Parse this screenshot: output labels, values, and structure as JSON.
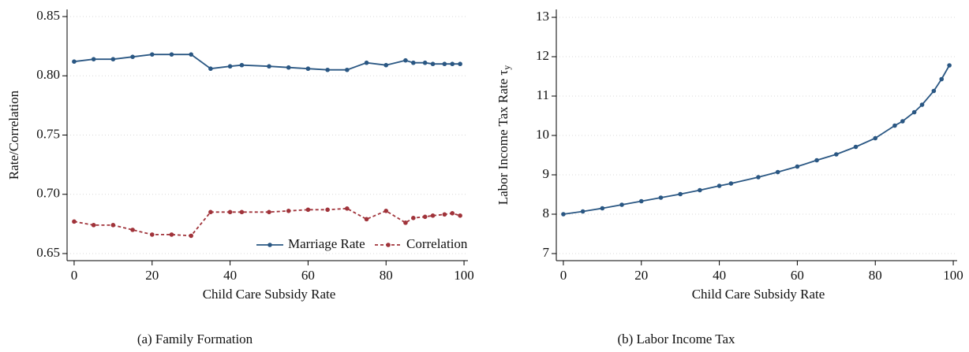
{
  "chart_data": [
    {
      "type": "line",
      "caption": "(a) Family Formation",
      "xlabel": "Child Care Subsidy Rate",
      "ylabel": "Rate/Correlation",
      "x": [
        0,
        5,
        10,
        15,
        20,
        25,
        30,
        35,
        40,
        43,
        50,
        55,
        60,
        65,
        70,
        75,
        80,
        85,
        87,
        90,
        92,
        95,
        97,
        99
      ],
      "series": [
        {
          "name": "Marriage Rate",
          "color": "#2a5783",
          "linestyle": "solid",
          "values": [
            0.812,
            0.814,
            0.814,
            0.816,
            0.818,
            0.818,
            0.818,
            0.806,
            0.808,
            0.809,
            0.808,
            0.807,
            0.806,
            0.805,
            0.805,
            0.811,
            0.809,
            0.813,
            0.811,
            0.811,
            0.81,
            0.81,
            0.81,
            0.81
          ]
        },
        {
          "name": "Correlation",
          "color": "#a0333a",
          "linestyle": "dashed",
          "values": [
            0.677,
            0.674,
            0.674,
            0.67,
            0.666,
            0.666,
            0.665,
            0.685,
            0.685,
            0.685,
            0.685,
            0.686,
            0.687,
            0.687,
            0.688,
            0.679,
            0.686,
            0.676,
            0.68,
            0.681,
            0.682,
            0.683,
            0.684,
            0.682
          ]
        }
      ],
      "xlim": [
        -1,
        101
      ],
      "xticks": [
        0,
        20,
        40,
        60,
        80,
        100
      ],
      "ylim": [
        0.644,
        0.856
      ],
      "yticks": [
        0.65,
        {
          "value": 0.7,
          "label": "0.70"
        },
        0.75,
        {
          "value": 0.8,
          "label": "0.80"
        },
        0.85
      ],
      "grid": true,
      "legend": "lower right"
    },
    {
      "type": "line",
      "caption": "(b) Labor Income Tax",
      "xlabel": "Child Care Subsidy Rate",
      "ylabel": "Labor Income Tax Rate τ",
      "ylabel_sub": "y",
      "x": [
        0,
        5,
        10,
        15,
        20,
        25,
        30,
        35,
        40,
        43,
        50,
        55,
        60,
        65,
        70,
        75,
        80,
        85,
        87,
        90,
        92,
        95,
        97,
        99
      ],
      "series": [
        {
          "color": "#2a5783",
          "linestyle": "solid",
          "values": [
            8.0,
            8.07,
            8.15,
            8.24,
            8.33,
            8.42,
            8.51,
            8.61,
            8.72,
            8.78,
            8.94,
            9.07,
            9.21,
            9.37,
            9.52,
            9.71,
            9.93,
            10.25,
            10.36,
            10.59,
            10.78,
            11.13,
            11.43,
            11.78
          ]
        }
      ],
      "xlim": [
        -1,
        101
      ],
      "xticks": [
        0,
        20,
        40,
        60,
        80,
        100
      ],
      "ylim": [
        6.82,
        13.2
      ],
      "yticks": [
        7,
        8,
        9,
        10,
        11,
        12,
        13
      ],
      "grid": true
    }
  ]
}
